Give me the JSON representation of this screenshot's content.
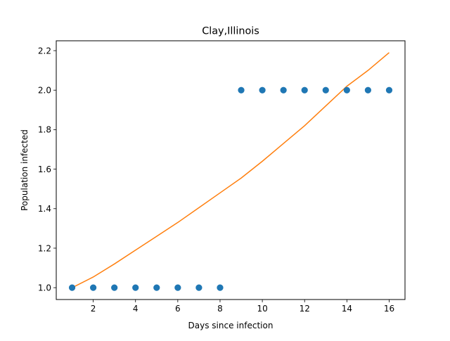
{
  "chart_data": {
    "type": "scatter",
    "title": "Clay,Illinois",
    "xlabel": "Days since infection",
    "ylabel": "Population infected",
    "xlim": [
      0.25,
      16.75
    ],
    "ylim": [
      0.94,
      2.25
    ],
    "xticks": [
      2,
      4,
      6,
      8,
      10,
      12,
      14,
      16
    ],
    "yticks": [
      1.0,
      1.2,
      1.4,
      1.6,
      1.8,
      2.0,
      2.2
    ],
    "grid": false,
    "series": [
      {
        "kind": "scatter",
        "color": "#1f77b4",
        "x": [
          1,
          2,
          3,
          4,
          5,
          6,
          7,
          8,
          9,
          10,
          11,
          12,
          13,
          14,
          15,
          16
        ],
        "y": [
          1,
          1,
          1,
          1,
          1,
          1,
          1,
          1,
          2,
          2,
          2,
          2,
          2,
          2,
          2,
          2
        ]
      },
      {
        "kind": "line",
        "color": "#ff7f0e",
        "x": [
          1,
          2,
          3,
          4,
          5,
          6,
          7,
          8,
          9,
          10,
          11,
          12,
          13,
          14,
          15,
          16
        ],
        "y": [
          1.0,
          1.054,
          1.12,
          1.19,
          1.26,
          1.33,
          1.405,
          1.48,
          1.555,
          1.64,
          1.73,
          1.82,
          1.92,
          2.02,
          2.1,
          2.19
        ]
      }
    ]
  }
}
